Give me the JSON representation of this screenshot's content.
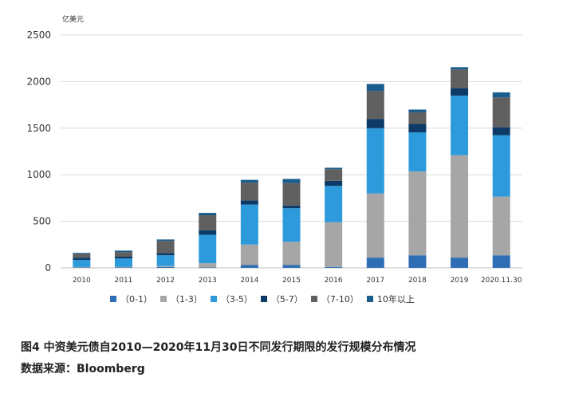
{
  "chart_data": {
    "type": "bar",
    "stacked": true,
    "unit_label": "亿美元",
    "categories": [
      "2010",
      "2011",
      "2012",
      "2013",
      "2014",
      "2015",
      "2016",
      "2017",
      "2018",
      "2019",
      "2020.11.30"
    ],
    "ylim": [
      0,
      2500
    ],
    "yticks": [
      0,
      500,
      1000,
      1500,
      2000,
      2500
    ],
    "grid": true,
    "legend_position": "bottom",
    "series": [
      {
        "name": "（0-1）",
        "color": "#2f6eb5",
        "values": [
          5,
          5,
          10,
          5,
          30,
          30,
          10,
          110,
          135,
          110,
          135
        ]
      },
      {
        "name": "（1-3）",
        "color": "#a6a6a6",
        "values": [
          5,
          5,
          10,
          45,
          220,
          250,
          480,
          690,
          900,
          1100,
          630
        ]
      },
      {
        "name": "（3-5）",
        "color": "#2d9bdb",
        "values": [
          75,
          90,
          115,
          305,
          430,
          360,
          390,
          700,
          420,
          640,
          660
        ]
      },
      {
        "name": "（5-7）",
        "color": "#0d3a66",
        "values": [
          25,
          20,
          25,
          50,
          45,
          30,
          55,
          100,
          90,
          80,
          85
        ]
      },
      {
        "name": "（7-10）",
        "color": "#606060",
        "values": [
          40,
          50,
          130,
          160,
          190,
          240,
          125,
          300,
          125,
          200,
          320
        ]
      },
      {
        "name": "10年以上",
        "color": "#1a5c8c",
        "values": [
          10,
          15,
          15,
          25,
          30,
          45,
          15,
          75,
          30,
          25,
          55
        ]
      }
    ]
  },
  "caption": {
    "title": "图4  中资美元债自2010—2020年11月30日不同发行期限的发行规模分布情况",
    "source": "数据来源：Bloomberg"
  }
}
